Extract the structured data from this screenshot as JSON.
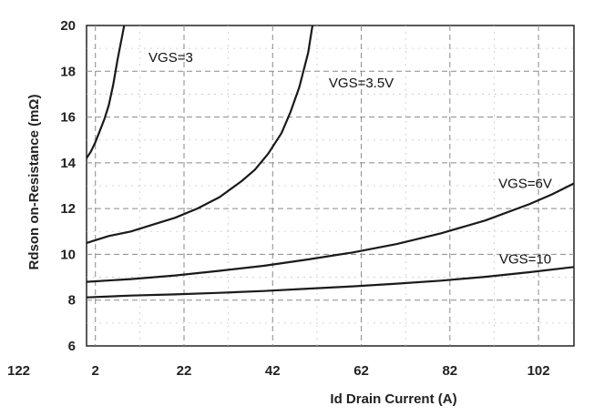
{
  "chart_data": {
    "type": "line",
    "title": "",
    "xlabel": "Id Drain Current (A)",
    "ylabel": "Rdson on-Resistance (mΩ)",
    "xlim": [
      0,
      110
    ],
    "ylim": [
      6,
      20
    ],
    "x_ticks": [
      2,
      22,
      42,
      62,
      82,
      102
    ],
    "x_tick_labels": [
      "2",
      "22",
      "42",
      "62",
      "82",
      "102"
    ],
    "stray_x_tick_label": "122",
    "y_ticks": [
      6,
      8,
      10,
      12,
      14,
      16,
      18,
      20
    ],
    "y_tick_labels": [
      "6",
      "8",
      "10",
      "12",
      "14",
      "16",
      "18",
      "20"
    ],
    "grid": true,
    "legend": "none",
    "series": [
      {
        "name": "VGS=3",
        "x": [
          0,
          1,
          2,
          3,
          4,
          5,
          6,
          7,
          8,
          8.5
        ],
        "y": [
          14.2,
          14.5,
          14.9,
          15.4,
          15.9,
          16.5,
          17.4,
          18.5,
          19.5,
          20
        ]
      },
      {
        "name": "VGS=3.5V",
        "x": [
          0,
          5,
          10,
          15,
          20,
          25,
          30,
          35,
          38,
          41,
          44,
          46,
          48,
          50,
          51
        ],
        "y": [
          10.5,
          10.8,
          11.0,
          11.3,
          11.6,
          12.0,
          12.5,
          13.2,
          13.7,
          14.4,
          15.3,
          16.2,
          17.3,
          18.8,
          20
        ]
      },
      {
        "name": "VGS=6V",
        "x": [
          0,
          10,
          20,
          30,
          40,
          50,
          60,
          70,
          80,
          90,
          100,
          105,
          110
        ],
        "y": [
          8.8,
          8.92,
          9.08,
          9.28,
          9.5,
          9.78,
          10.08,
          10.45,
          10.92,
          11.48,
          12.2,
          12.62,
          13.1
        ]
      },
      {
        "name": "VGS=10",
        "x": [
          0,
          10,
          20,
          30,
          40,
          50,
          60,
          70,
          80,
          90,
          100,
          110
        ],
        "y": [
          8.12,
          8.2,
          8.25,
          8.32,
          8.4,
          8.5,
          8.6,
          8.72,
          8.85,
          9.02,
          9.22,
          9.45
        ]
      }
    ],
    "colors": {
      "curve": "#1a1a1a",
      "grid": "#8a8a8a",
      "frame": "#222222",
      "background": "#ffffff"
    }
  }
}
